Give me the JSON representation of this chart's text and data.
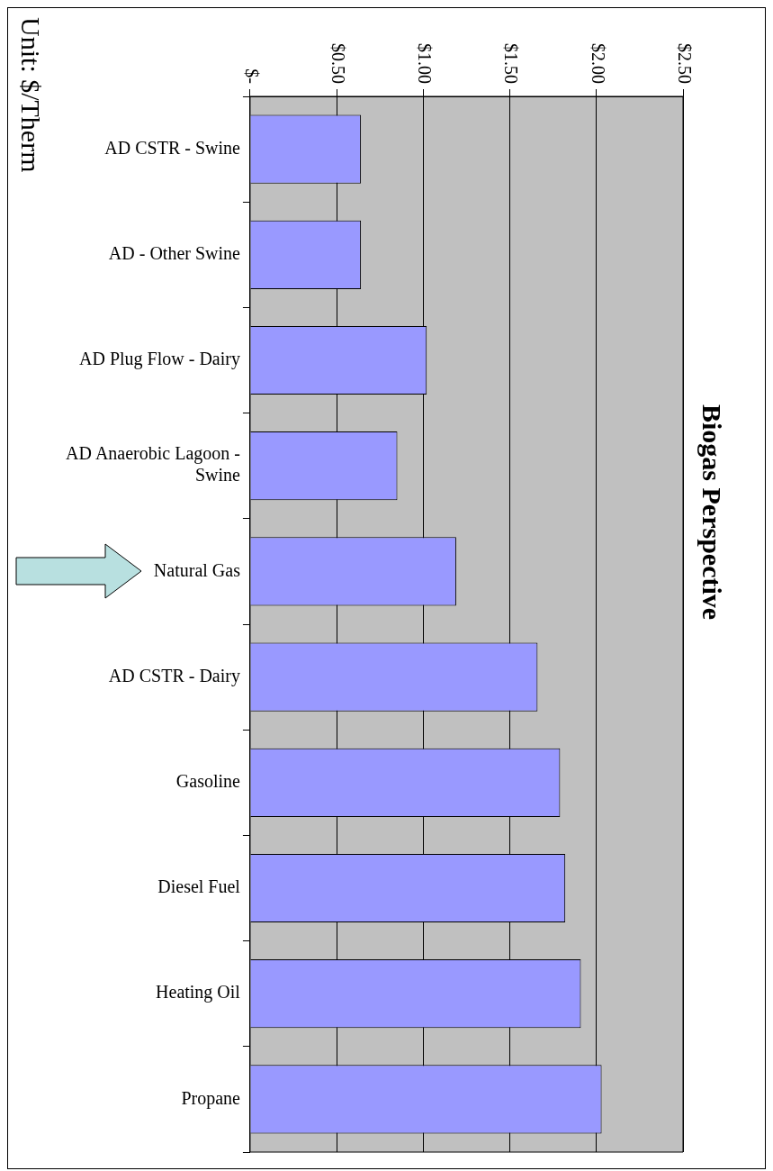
{
  "chart_data": {
    "type": "bar",
    "orientation": "horizontal",
    "title": "Biogas Perspective",
    "annotations": [
      "Unit:  $/Therm"
    ],
    "categories": [
      "AD CSTR - Swine",
      "AD - Other Swine",
      "AD Plug Flow - Dairy",
      "AD Anaerobic Lagoon - Swine",
      "Natural Gas",
      "AD CSTR - Dairy",
      "Gasoline",
      "Diesel Fuel",
      "Heating Oil",
      "Propane"
    ],
    "values": [
      0.64,
      0.64,
      1.02,
      0.85,
      1.19,
      1.66,
      1.79,
      1.82,
      1.91,
      2.03
    ],
    "color": "#9999ff",
    "xlim": [
      0,
      2.5
    ],
    "xticks": [
      {
        "value": 0,
        "label": "$-"
      },
      {
        "value": 0.5,
        "label": "$0.50"
      },
      {
        "value": 1,
        "label": "$1.00"
      },
      {
        "value": 1.5,
        "label": "$1.50"
      },
      {
        "value": 2,
        "label": "$2.00"
      },
      {
        "value": 2.5,
        "label": "$2.50"
      }
    ],
    "grid": "x",
    "legend": false
  }
}
